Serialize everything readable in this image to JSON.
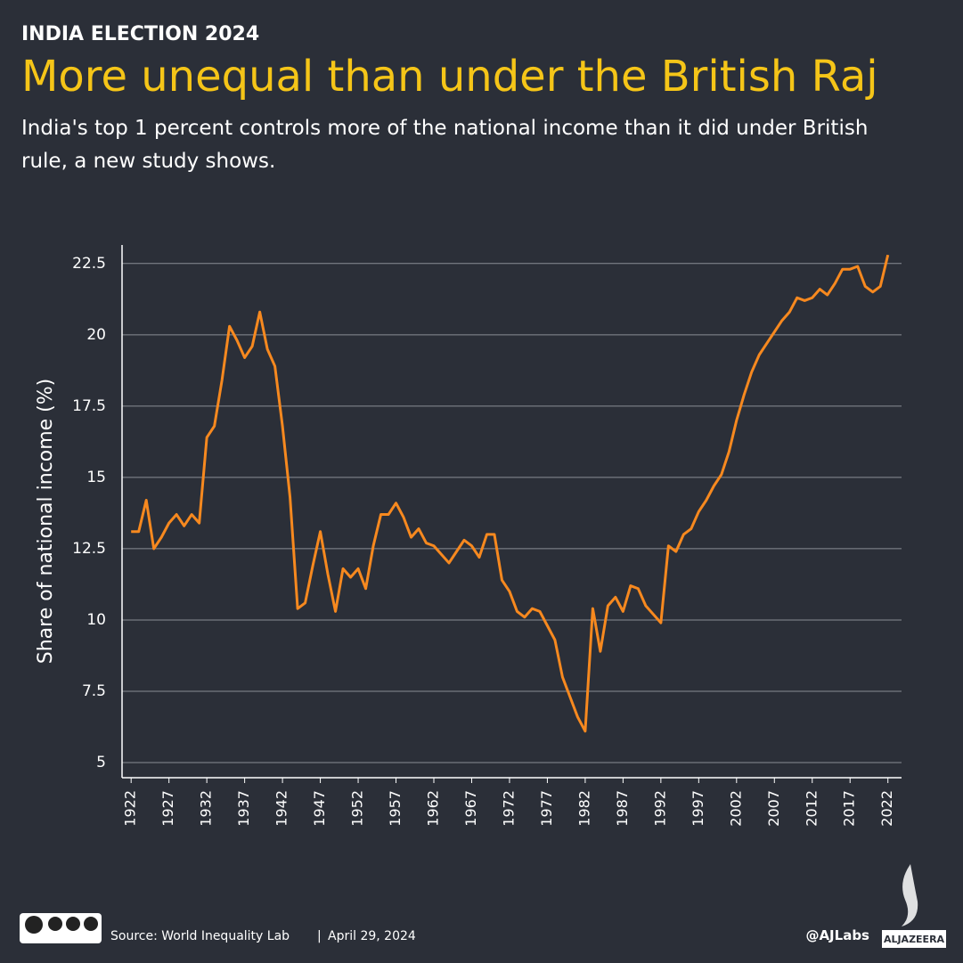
{
  "kicker": "INDIA ELECTION 2024",
  "chart_data": {
    "type": "line",
    "title": "More unequal than under the British Raj",
    "subtitle": "India's top 1 percent controls more of the national income than it did under British rule, a new study shows.",
    "ylabel": "Share of national income (%)",
    "x": [
      1922,
      1923,
      1924,
      1925,
      1926,
      1927,
      1928,
      1929,
      1930,
      1931,
      1932,
      1933,
      1934,
      1935,
      1936,
      1937,
      1938,
      1939,
      1940,
      1941,
      1942,
      1943,
      1944,
      1945,
      1946,
      1947,
      1948,
      1949,
      1950,
      1951,
      1952,
      1953,
      1954,
      1955,
      1956,
      1957,
      1958,
      1959,
      1960,
      1961,
      1962,
      1963,
      1964,
      1965,
      1966,
      1967,
      1968,
      1969,
      1970,
      1971,
      1972,
      1973,
      1974,
      1975,
      1976,
      1977,
      1978,
      1979,
      1980,
      1981,
      1982,
      1983,
      1984,
      1985,
      1986,
      1987,
      1988,
      1989,
      1990,
      1991,
      1992,
      1993,
      1994,
      1995,
      1996,
      1997,
      1998,
      1999,
      2000,
      2001,
      2002,
      2003,
      2004,
      2005,
      2006,
      2007,
      2008,
      2009,
      2010,
      2011,
      2012,
      2013,
      2014,
      2015,
      2016,
      2017,
      2018,
      2019,
      2020,
      2021,
      2022
    ],
    "values": [
      13.1,
      13.1,
      14.2,
      12.5,
      12.9,
      13.4,
      13.7,
      13.3,
      13.7,
      13.4,
      16.4,
      16.8,
      18.4,
      20.3,
      19.8,
      19.2,
      19.6,
      20.8,
      19.5,
      18.9,
      16.8,
      14.3,
      10.4,
      10.6,
      11.9,
      13.1,
      11.6,
      10.3,
      11.8,
      11.5,
      11.8,
      11.1,
      12.6,
      13.7,
      13.7,
      14.1,
      13.6,
      12.9,
      13.2,
      12.7,
      12.6,
      12.3,
      12.0,
      12.4,
      12.8,
      12.6,
      12.2,
      13.0,
      13.0,
      11.4,
      11.0,
      10.3,
      10.1,
      10.4,
      10.3,
      9.8,
      9.3,
      8.0,
      7.3,
      6.6,
      6.1,
      10.4,
      8.9,
      10.5,
      10.8,
      10.3,
      11.2,
      11.1,
      10.5,
      10.2,
      9.9,
      12.6,
      12.4,
      13.0,
      13.2,
      13.8,
      14.2,
      14.7,
      15.1,
      15.9,
      17.0,
      17.9,
      18.7,
      19.3,
      19.7,
      20.1,
      20.5,
      20.8,
      21.3,
      21.2,
      21.3,
      21.6,
      21.4,
      21.8,
      22.3,
      22.3,
      22.4,
      21.7,
      21.5,
      21.7,
      22.8
    ],
    "color": "#f7891f",
    "xlim": [
      1920.8,
      2023.8
    ],
    "xticks": [
      1922,
      1927,
      1932,
      1937,
      1942,
      1947,
      1952,
      1957,
      1962,
      1967,
      1972,
      1977,
      1982,
      1987,
      1992,
      1997,
      2002,
      2007,
      2012,
      2017,
      2022
    ],
    "ylim": [
      4.47,
      23.15
    ],
    "yticks": [
      5,
      7.5,
      10,
      12.5,
      15,
      17.5,
      20,
      22.5
    ],
    "grid": true
  },
  "footer": {
    "source": "Source: World Inequality Lab",
    "date": "April 29, 2024",
    "handle": "@AJLabs",
    "logo": "ALJAZEERA"
  }
}
